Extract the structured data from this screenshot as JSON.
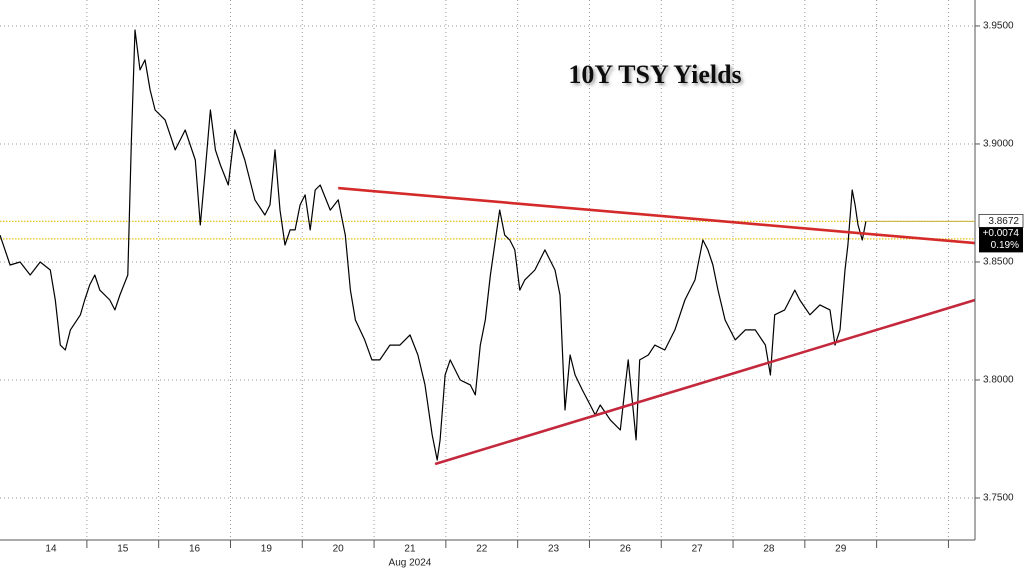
{
  "chart_data": {
    "type": "line",
    "title": "10Y TSY Yields",
    "x_axis_label": "Aug 2024",
    "color": "#000000",
    "x": [
      -0.21,
      -0.07,
      0.07,
      0.21,
      0.35,
      0.49,
      0.56,
      0.63,
      0.7,
      0.77,
      0.91,
      0.97,
      1.04,
      1.11,
      1.18,
      1.32,
      1.39,
      1.46,
      1.57,
      1.62,
      1.67,
      1.74,
      1.81,
      1.88,
      1.95,
      2.09,
      2.23,
      2.37,
      2.51,
      2.58,
      2.65,
      2.72,
      2.79,
      2.86,
      2.97,
      3.06,
      3.2,
      3.34,
      3.48,
      3.55,
      3.62,
      3.69,
      3.76,
      3.83,
      3.9,
      3.97,
      4.04,
      4.11,
      4.18,
      4.25,
      4.39,
      4.5,
      4.6,
      4.67,
      4.74,
      4.87,
      4.97,
      5.08,
      5.22,
      5.36,
      5.5,
      5.61,
      5.71,
      5.81,
      5.88,
      5.92,
      5.99,
      6.06,
      6.2,
      6.34,
      6.41,
      6.48,
      6.55,
      6.62,
      6.69,
      6.75,
      6.82,
      6.89,
      6.96,
      7.03,
      7.1,
      7.24,
      7.38,
      7.52,
      7.59,
      7.66,
      7.73,
      7.8,
      7.9,
      8.01,
      8.08,
      8.15,
      8.29,
      8.43,
      8.54,
      8.61,
      8.65,
      8.7,
      8.82,
      8.91,
      9.05,
      9.19,
      9.33,
      9.47,
      9.58,
      9.65,
      9.72,
      9.79,
      9.89,
      10.03,
      10.17,
      10.31,
      10.45,
      10.52,
      10.58,
      10.72,
      10.86,
      10.93,
      11.07,
      11.21,
      11.35,
      11.42,
      11.49,
      11.56,
      11.6,
      11.66,
      11.7,
      11.74,
      11.8,
      11.85
    ],
    "values": [
      3.8614,
      3.8487,
      3.85,
      3.8445,
      3.85,
      3.8466,
      3.8339,
      3.8148,
      3.8127,
      3.8212,
      3.8276,
      3.8339,
      3.8403,
      3.8445,
      3.8381,
      3.8339,
      3.8297,
      3.836,
      3.8445,
      3.9017,
      3.9483,
      3.9314,
      3.9356,
      3.9229,
      3.9144,
      3.9102,
      3.8975,
      3.9059,
      3.8932,
      3.8657,
      3.889,
      3.9144,
      3.8975,
      3.8911,
      3.8826,
      3.9059,
      3.8932,
      3.8763,
      3.8699,
      3.8742,
      3.8975,
      3.872,
      3.8572,
      3.8636,
      3.8636,
      3.8742,
      3.8784,
      3.8636,
      3.8805,
      3.8826,
      3.872,
      3.8763,
      3.8614,
      3.8381,
      3.8254,
      3.817,
      3.8085,
      3.8085,
      3.8148,
      3.8148,
      3.8191,
      3.8106,
      3.7979,
      3.7767,
      3.7661,
      3.7746,
      3.8021,
      3.8085,
      3.8,
      3.7979,
      3.7937,
      3.8148,
      3.8254,
      3.8445,
      3.8593,
      3.872,
      3.8614,
      3.8593,
      3.8551,
      3.8381,
      3.8424,
      3.8466,
      3.8551,
      3.8466,
      3.836,
      3.7873,
      3.8106,
      3.8021,
      3.7958,
      3.7894,
      3.7852,
      3.7894,
      3.7831,
      3.7788,
      3.8085,
      3.7873,
      3.7746,
      3.8085,
      3.8106,
      3.8148,
      3.8127,
      3.8212,
      3.8339,
      3.8424,
      3.8593,
      3.8551,
      3.8487,
      3.8381,
      3.8254,
      3.817,
      3.8212,
      3.8212,
      3.8148,
      3.8021,
      3.8276,
      3.8297,
      3.8381,
      3.8339,
      3.8276,
      3.8318,
      3.8297,
      3.8148,
      3.8212,
      3.8466,
      3.8572,
      3.8805,
      3.8742,
      3.8657,
      3.8593,
      3.8672
    ],
    "xlim": [
      -0.21,
      13.37
    ],
    "ylim": [
      3.7322,
      3.961
    ],
    "yticks": [
      {
        "value": 3.75,
        "label": "3.7500"
      },
      {
        "value": 3.8,
        "label": "3.8000"
      },
      {
        "value": 3.85,
        "label": "3.8500"
      },
      {
        "value": 3.9,
        "label": "3.9000"
      },
      {
        "value": 3.95,
        "label": "3.9500"
      }
    ],
    "xticks": [
      {
        "value": 0.5,
        "label": "14"
      },
      {
        "value": 1.5,
        "label": "15"
      },
      {
        "value": 2.5,
        "label": "16"
      },
      {
        "value": 3.5,
        "label": "19"
      },
      {
        "value": 4.5,
        "label": "20"
      },
      {
        "value": 5.5,
        "label": "21"
      },
      {
        "value": 6.5,
        "label": "22"
      },
      {
        "value": 7.5,
        "label": "23"
      },
      {
        "value": 8.5,
        "label": "26"
      },
      {
        "value": 9.5,
        "label": "27"
      },
      {
        "value": 10.5,
        "label": "28"
      },
      {
        "value": 11.5,
        "label": "29"
      }
    ],
    "xgrid": [
      1,
      2,
      3,
      4,
      5,
      6,
      7,
      8,
      9,
      10,
      11,
      12,
      13
    ],
    "grid": true,
    "reference_lines": [
      {
        "value": 3.8672,
        "color": "#e3c21a"
      },
      {
        "value": 3.8598,
        "color": "#e3c21a"
      }
    ],
    "trend_lines": [
      {
        "x": [
          4.5,
          13.37
        ],
        "values": [
          3.8813,
          3.858
        ],
        "color": "#d42a2a"
      },
      {
        "x": [
          5.85,
          13.37
        ],
        "values": [
          3.7644,
          3.8339
        ],
        "color": "#c4283c"
      }
    ],
    "last_label": {
      "value": 3.8672,
      "change": 0.0074,
      "change_label": "+0.0074",
      "pct": 0.19,
      "pct_label": "0.19%"
    }
  }
}
